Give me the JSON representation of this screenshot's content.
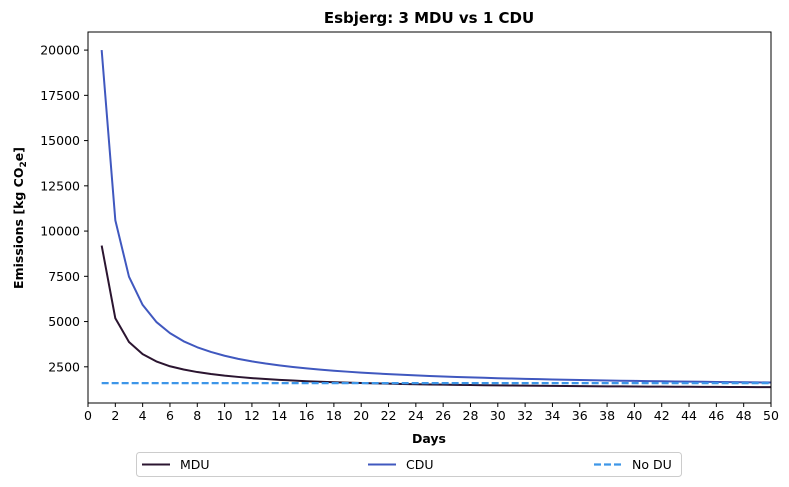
{
  "chart_data": {
    "type": "line",
    "title": "Esbjerg: 3 MDU vs 1 CDU",
    "xlabel": "Days",
    "ylabel_prefix": "Emissions [kg CO",
    "ylabel_sub": "2",
    "ylabel_suffix": "e]",
    "xlim": [
      0,
      50
    ],
    "ylim": [
      500,
      21000
    ],
    "xticks": [
      0,
      2,
      4,
      6,
      8,
      10,
      12,
      14,
      16,
      18,
      20,
      22,
      24,
      26,
      28,
      30,
      32,
      34,
      36,
      38,
      40,
      42,
      44,
      46,
      48,
      50
    ],
    "yticks": [
      2500,
      5000,
      7500,
      10000,
      12500,
      15000,
      17500,
      20000
    ],
    "grid": false,
    "legend_position": "bottom-center",
    "series": [
      {
        "name": "MDU",
        "color": "#2b1530",
        "style": "solid",
        "x": [
          1,
          2,
          3,
          4,
          5,
          6,
          7,
          8,
          9,
          10,
          11,
          12,
          13,
          14,
          15,
          16,
          17,
          18,
          19,
          20,
          21,
          22,
          23,
          24,
          25,
          26,
          27,
          28,
          29,
          30,
          31,
          32,
          33,
          34,
          35,
          36,
          37,
          38,
          39,
          40,
          41,
          42,
          43,
          44,
          45,
          46,
          47,
          48,
          49,
          50
        ],
        "values": [
          9200,
          5180,
          3870,
          3200,
          2800,
          2530,
          2350,
          2210,
          2100,
          2010,
          1940,
          1875,
          1825,
          1780,
          1740,
          1705,
          1675,
          1648,
          1625,
          1604,
          1585,
          1568,
          1552,
          1538,
          1525,
          1513,
          1502,
          1492,
          1483,
          1474,
          1466,
          1458,
          1451,
          1444,
          1438,
          1432,
          1427,
          1421,
          1416,
          1412,
          1407,
          1403,
          1399,
          1395,
          1392,
          1388,
          1385,
          1382,
          1379,
          1376
        ]
      },
      {
        "name": "CDU",
        "color": "#4058bf",
        "style": "solid",
        "x": [
          1,
          2,
          3,
          4,
          5,
          6,
          7,
          8,
          9,
          10,
          11,
          12,
          13,
          14,
          15,
          16,
          17,
          18,
          19,
          20,
          21,
          22,
          23,
          24,
          25,
          26,
          27,
          28,
          29,
          30,
          31,
          32,
          33,
          34,
          35,
          36,
          37,
          38,
          39,
          40,
          41,
          42,
          43,
          44,
          45,
          46,
          47,
          48,
          49,
          50
        ],
        "values": [
          20000,
          10600,
          7480,
          5920,
          4980,
          4360,
          3910,
          3580,
          3320,
          3110,
          2940,
          2800,
          2680,
          2580,
          2490,
          2410,
          2345,
          2285,
          2230,
          2180,
          2135,
          2095,
          2058,
          2025,
          1994,
          1965,
          1939,
          1915,
          1892,
          1871,
          1851,
          1833,
          1816,
          1800,
          1784,
          1770,
          1756,
          1744,
          1732,
          1720,
          1709,
          1699,
          1689,
          1680,
          1671,
          1662,
          1654,
          1646,
          1639,
          1632
        ]
      },
      {
        "name": "No DU",
        "color": "#3d96e8",
        "style": "dashed",
        "x": [
          1,
          50
        ],
        "values": [
          1600,
          1600
        ]
      }
    ]
  }
}
